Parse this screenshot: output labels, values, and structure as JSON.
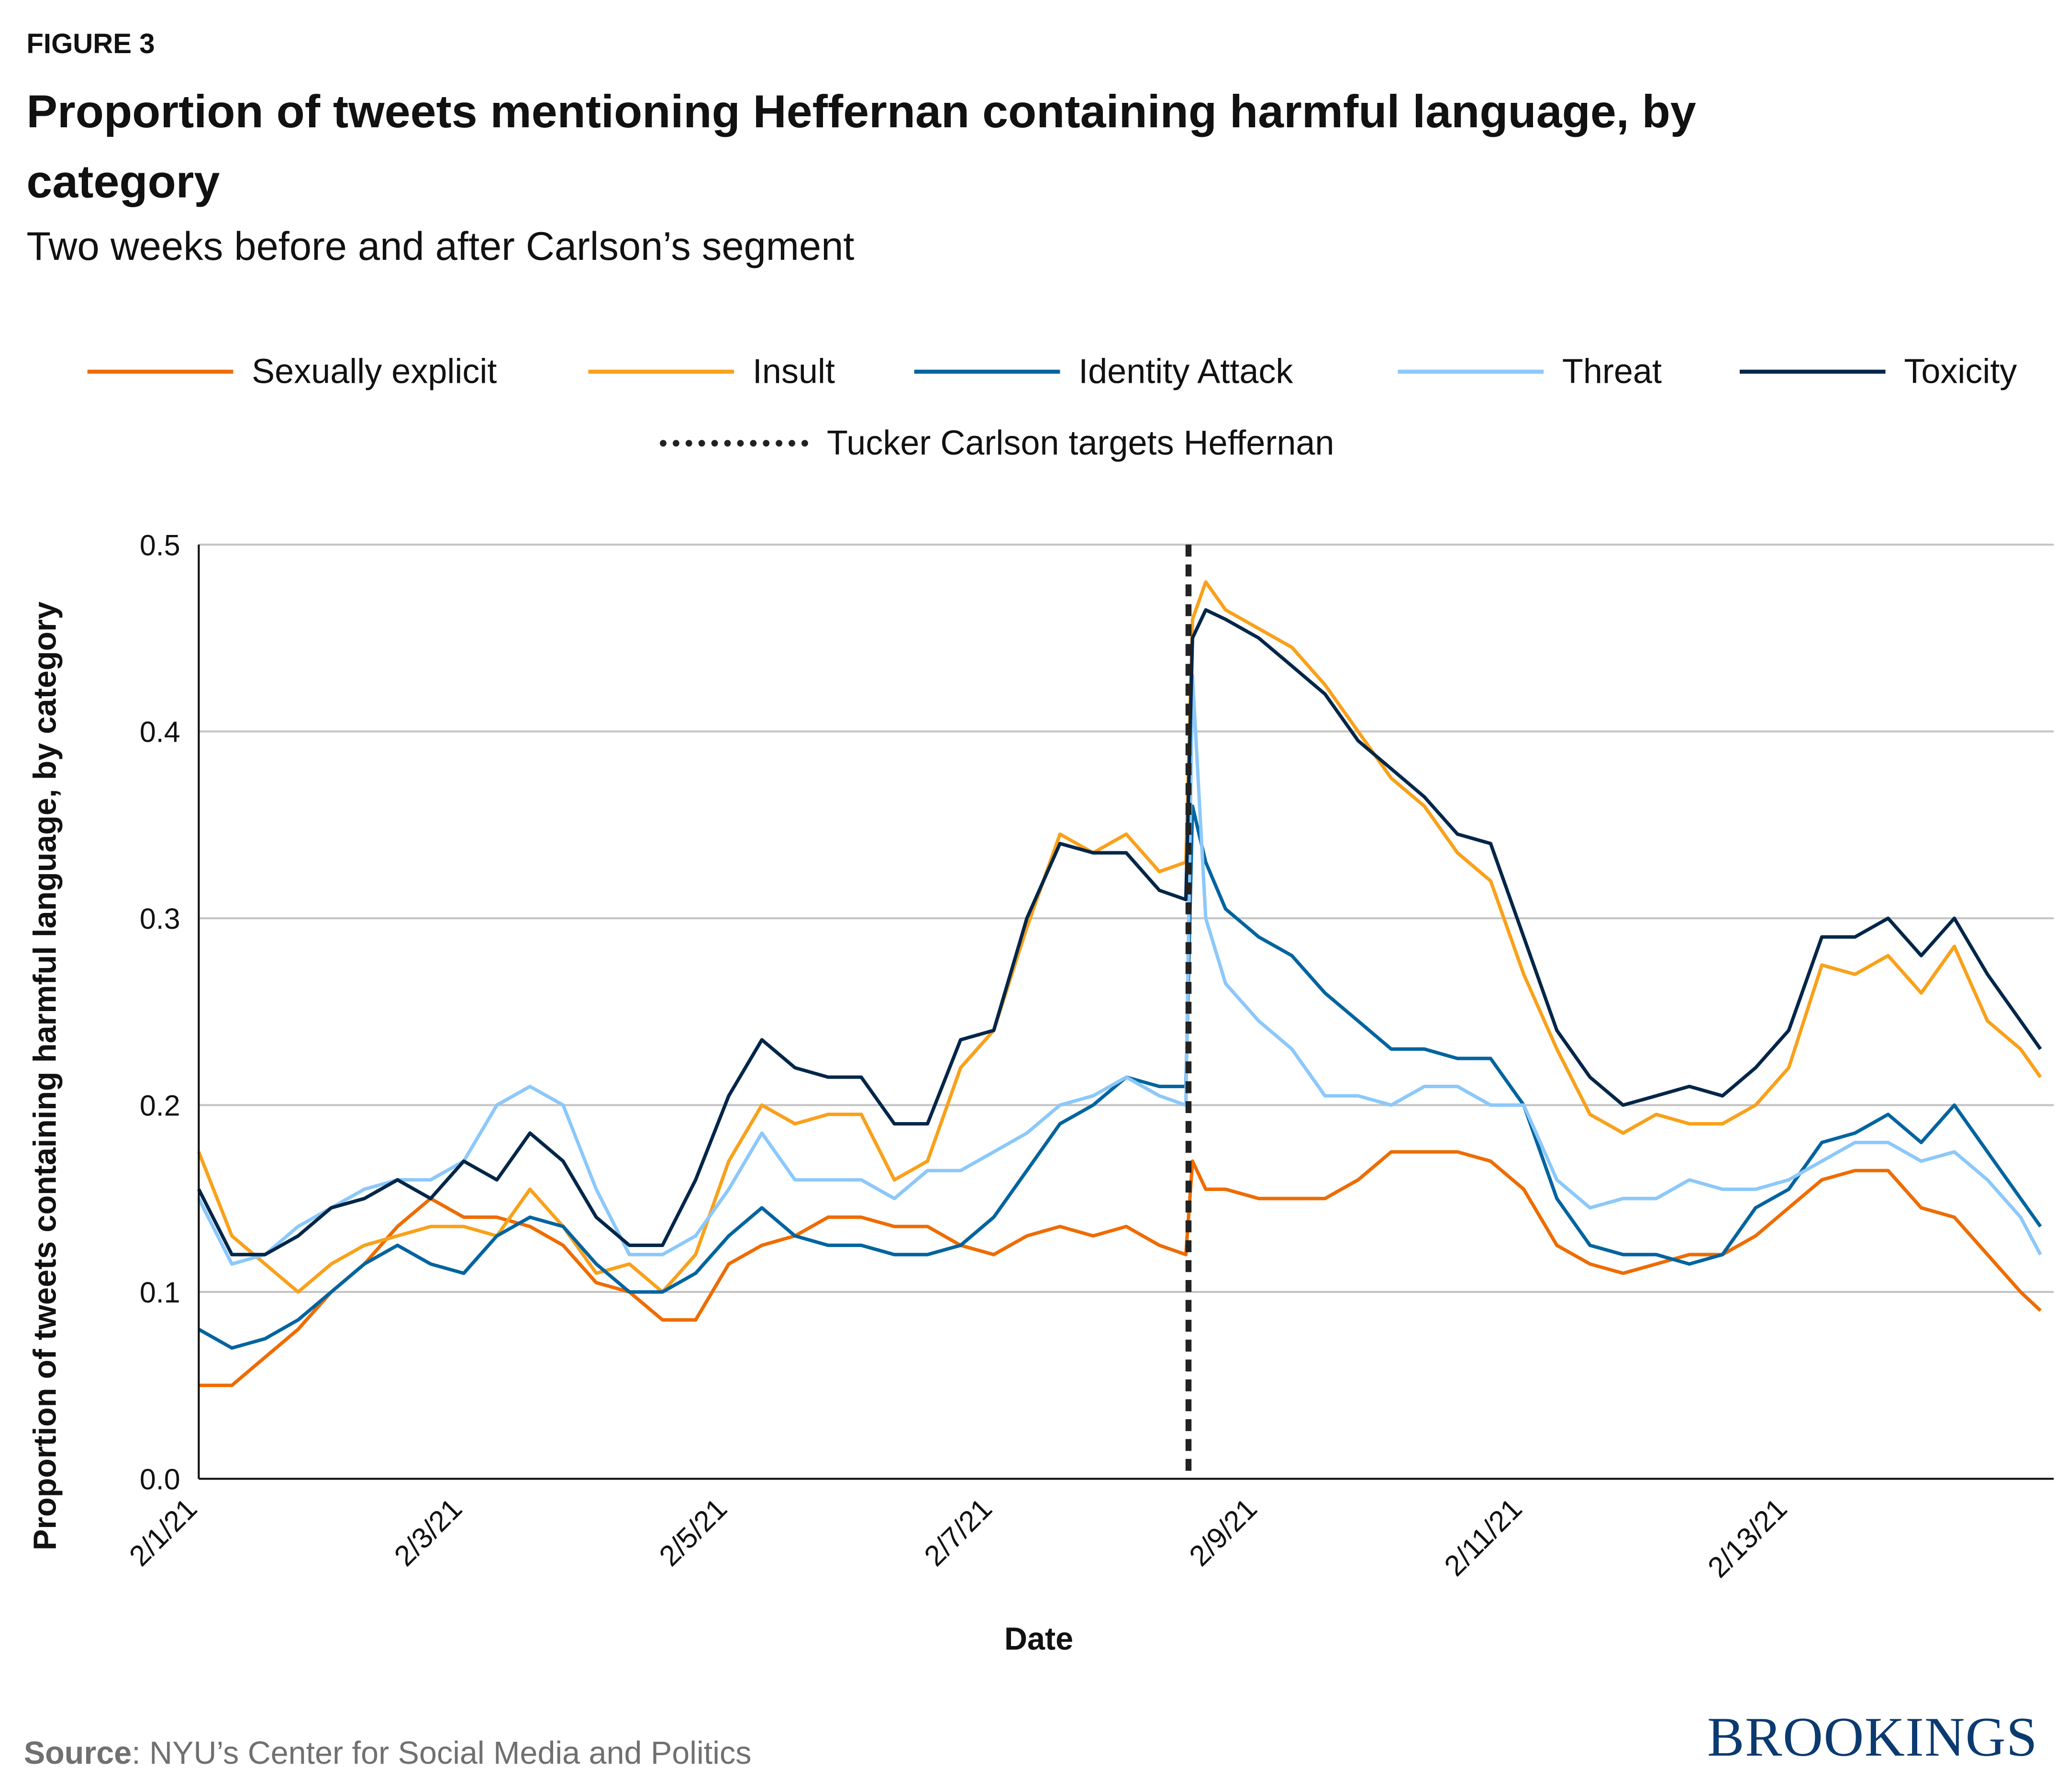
{
  "figure_label": "FIGURE 3",
  "title": "Proportion of tweets mentioning Heffernan containing harmful language, by category",
  "subtitle": "Two weeks before and after Carlson’s segment",
  "source_label": "Source",
  "source_text": ": NYU’s Center for Social Media and Politics",
  "brand": "BROOKINGS",
  "chart_data": {
    "type": "line",
    "title": "Proportion of tweets mentioning Heffernan containing harmful language, by category",
    "xlabel": "Date",
    "ylabel": "Proportion of tweets containing harmful language, by category",
    "x_unit": "days since 2/1/21",
    "xlim": [
      0,
      13.9
    ],
    "ylim": [
      0,
      0.5
    ],
    "y_ticks": [
      "0.0",
      "0.1",
      "0.2",
      "0.3",
      "0.4",
      "0.5"
    ],
    "y_tick_values": [
      0,
      0.1,
      0.2,
      0.3,
      0.4,
      0.5
    ],
    "x_ticks": [
      "2/1/21",
      "2/3/21",
      "2/5/21",
      "2/7/21",
      "2/9/21",
      "2/11/21",
      "2/13/21"
    ],
    "x_tick_values": [
      0,
      2,
      4,
      6,
      8,
      10,
      12
    ],
    "grid": true,
    "legend_position": "top",
    "event": {
      "label": "Tucker Carlson targets Heffernan",
      "x": 7.47,
      "color": "#222222"
    },
    "x": [
      0,
      0.25,
      0.5,
      0.75,
      1,
      1.25,
      1.5,
      1.75,
      2,
      2.25,
      2.5,
      2.75,
      3,
      3.25,
      3.5,
      3.75,
      4,
      4.25,
      4.5,
      4.75,
      5,
      5.25,
      5.5,
      5.75,
      6,
      6.25,
      6.5,
      6.75,
      7,
      7.25,
      7.45,
      7.5,
      7.6,
      7.75,
      8,
      8.25,
      8.5,
      8.75,
      9,
      9.25,
      9.5,
      9.75,
      10,
      10.25,
      10.5,
      10.75,
      11,
      11.25,
      11.5,
      11.75,
      12,
      12.25,
      12.5,
      12.75,
      13,
      13.25,
      13.5,
      13.75,
      13.9
    ],
    "series": [
      {
        "name": "Sexually explicit",
        "color": "#EE6C00",
        "values": [
          0.05,
          0.05,
          0.065,
          0.08,
          0.1,
          0.115,
          0.135,
          0.15,
          0.14,
          0.14,
          0.135,
          0.125,
          0.105,
          0.1,
          0.085,
          0.085,
          0.115,
          0.125,
          0.13,
          0.14,
          0.14,
          0.135,
          0.135,
          0.125,
          0.12,
          0.13,
          0.135,
          0.13,
          0.135,
          0.125,
          0.12,
          0.17,
          0.155,
          0.155,
          0.15,
          0.15,
          0.15,
          0.16,
          0.175,
          0.175,
          0.175,
          0.17,
          0.155,
          0.125,
          0.115,
          0.11,
          0.115,
          0.12,
          0.12,
          0.13,
          0.145,
          0.16,
          0.165,
          0.165,
          0.145,
          0.14,
          0.12,
          0.1,
          0.09
        ]
      },
      {
        "name": "Insult",
        "color": "#F9A11B",
        "values": [
          0.175,
          0.13,
          0.115,
          0.1,
          0.115,
          0.125,
          0.13,
          0.135,
          0.135,
          0.13,
          0.155,
          0.135,
          0.11,
          0.115,
          0.1,
          0.12,
          0.17,
          0.2,
          0.19,
          0.195,
          0.195,
          0.16,
          0.17,
          0.22,
          0.24,
          0.295,
          0.345,
          0.335,
          0.345,
          0.325,
          0.33,
          0.46,
          0.48,
          0.465,
          0.455,
          0.445,
          0.425,
          0.4,
          0.375,
          0.36,
          0.335,
          0.32,
          0.27,
          0.23,
          0.195,
          0.185,
          0.195,
          0.19,
          0.19,
          0.2,
          0.22,
          0.275,
          0.27,
          0.28,
          0.26,
          0.285,
          0.245,
          0.23,
          0.215
        ]
      },
      {
        "name": "Identity Attack",
        "color": "#00649F",
        "values": [
          0.08,
          0.07,
          0.075,
          0.085,
          0.1,
          0.115,
          0.125,
          0.115,
          0.11,
          0.13,
          0.14,
          0.135,
          0.115,
          0.1,
          0.1,
          0.11,
          0.13,
          0.145,
          0.13,
          0.125,
          0.125,
          0.12,
          0.12,
          0.125,
          0.14,
          0.165,
          0.19,
          0.2,
          0.215,
          0.21,
          0.21,
          0.36,
          0.33,
          0.305,
          0.29,
          0.28,
          0.26,
          0.245,
          0.23,
          0.23,
          0.225,
          0.225,
          0.2,
          0.15,
          0.125,
          0.12,
          0.12,
          0.115,
          0.12,
          0.145,
          0.155,
          0.18,
          0.185,
          0.195,
          0.18,
          0.2,
          0.175,
          0.15,
          0.135
        ]
      },
      {
        "name": "Threat",
        "color": "#8CC8FA",
        "values": [
          0.15,
          0.115,
          0.12,
          0.135,
          0.145,
          0.155,
          0.16,
          0.16,
          0.17,
          0.2,
          0.21,
          0.2,
          0.155,
          0.12,
          0.12,
          0.13,
          0.155,
          0.185,
          0.16,
          0.16,
          0.16,
          0.15,
          0.165,
          0.165,
          0.175,
          0.185,
          0.2,
          0.205,
          0.215,
          0.205,
          0.2,
          0.43,
          0.3,
          0.265,
          0.245,
          0.23,
          0.205,
          0.205,
          0.2,
          0.21,
          0.21,
          0.2,
          0.2,
          0.16,
          0.145,
          0.15,
          0.15,
          0.16,
          0.155,
          0.155,
          0.16,
          0.17,
          0.18,
          0.18,
          0.17,
          0.175,
          0.16,
          0.14,
          0.12
        ]
      },
      {
        "name": "Toxicity",
        "color": "#002649",
        "values": [
          0.155,
          0.12,
          0.12,
          0.13,
          0.145,
          0.15,
          0.16,
          0.15,
          0.17,
          0.16,
          0.185,
          0.17,
          0.14,
          0.125,
          0.125,
          0.16,
          0.205,
          0.235,
          0.22,
          0.215,
          0.215,
          0.19,
          0.19,
          0.235,
          0.24,
          0.3,
          0.34,
          0.335,
          0.335,
          0.315,
          0.31,
          0.45,
          0.465,
          0.46,
          0.45,
          0.435,
          0.42,
          0.395,
          0.38,
          0.365,
          0.345,
          0.34,
          0.29,
          0.24,
          0.215,
          0.2,
          0.205,
          0.21,
          0.205,
          0.22,
          0.24,
          0.29,
          0.29,
          0.3,
          0.28,
          0.3,
          0.27,
          0.245,
          0.23
        ]
      }
    ]
  }
}
